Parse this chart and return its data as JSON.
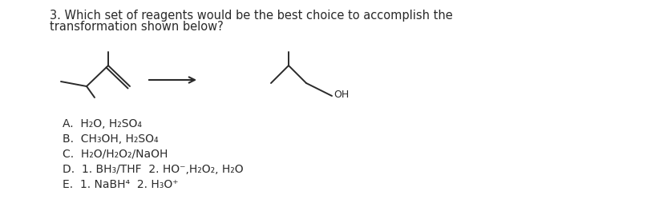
{
  "title_line1": "3. Which set of reagents would be the best choice to accomplish the",
  "title_line2": "transformation shown below?",
  "options": [
    "A.  H₂O, H₂SO₄",
    "B.  CH₃OH, H₂SO₄",
    "C.  H₂O/H₂O₂/NaOH",
    "D.  1. BH₃/THF  2. HO⁻,H₂O₂, H₂O",
    "E.  1. NaBH⁴  2. H₃O⁺"
  ],
  "bg_color": "#ffffff",
  "text_color": "#2a2a2a",
  "font_size_title": 10.5,
  "font_size_options": 10.0,
  "mol_lw": 1.4
}
